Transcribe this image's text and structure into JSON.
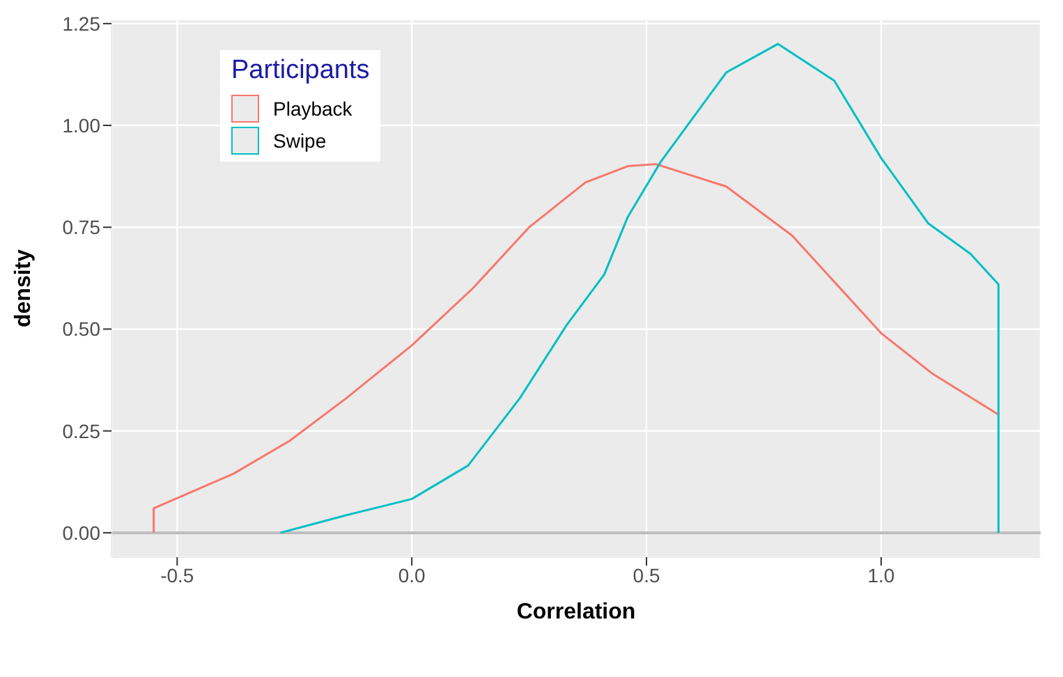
{
  "chart_data": {
    "type": "line",
    "xlabel": "Correlation",
    "ylabel": "density",
    "legend_title": "Participants",
    "xlim": [
      -0.64,
      1.34
    ],
    "xticks": [
      -0.5,
      {
        "value": 0,
        "label": "0.0"
      },
      0.5,
      {
        "value": 1,
        "label": "1.0"
      }
    ],
    "ylim": [
      -0.06,
      1.26
    ],
    "yticks": [
      {
        "value": 0,
        "label": "0.00"
      },
      0.25,
      {
        "value": 0.5,
        "label": "0.50"
      },
      0.75,
      {
        "value": 1,
        "label": "1.00"
      },
      1.25
    ],
    "grid": true,
    "legend": "top left",
    "marker": "none",
    "line_style": "solid",
    "ref_lines": [
      {
        "axis": "y",
        "value": 0,
        "label": null,
        "color": "#bebebe"
      }
    ],
    "series": [
      {
        "name": "Playback",
        "color": "#f8766d",
        "x": [
          -0.55,
          -0.55,
          -0.38,
          -0.26,
          -0.14,
          0.0,
          0.13,
          0.25,
          0.37,
          0.46,
          0.52,
          0.67,
          0.81,
          1.0,
          1.11,
          1.25
        ],
        "values": [
          0,
          0.06,
          0.145,
          0.226,
          0.33,
          0.46,
          0.6,
          0.75,
          0.86,
          0.9,
          0.905,
          0.85,
          0.73,
          0.49,
          0.39,
          0.29
        ]
      },
      {
        "name": "Swipe",
        "color": "#00bfc4",
        "x": [
          -0.28,
          -0.14,
          0.0,
          0.12,
          0.23,
          0.33,
          0.41,
          0.46,
          0.53,
          0.67,
          0.78,
          0.9,
          1.0,
          1.1,
          1.19,
          1.25,
          1.25
        ],
        "values": [
          0.0,
          0.043,
          0.083,
          0.165,
          0.33,
          0.51,
          0.634,
          0.775,
          0.91,
          1.13,
          1.2,
          1.11,
          0.92,
          0.76,
          0.685,
          0.61,
          0
        ]
      }
    ]
  }
}
